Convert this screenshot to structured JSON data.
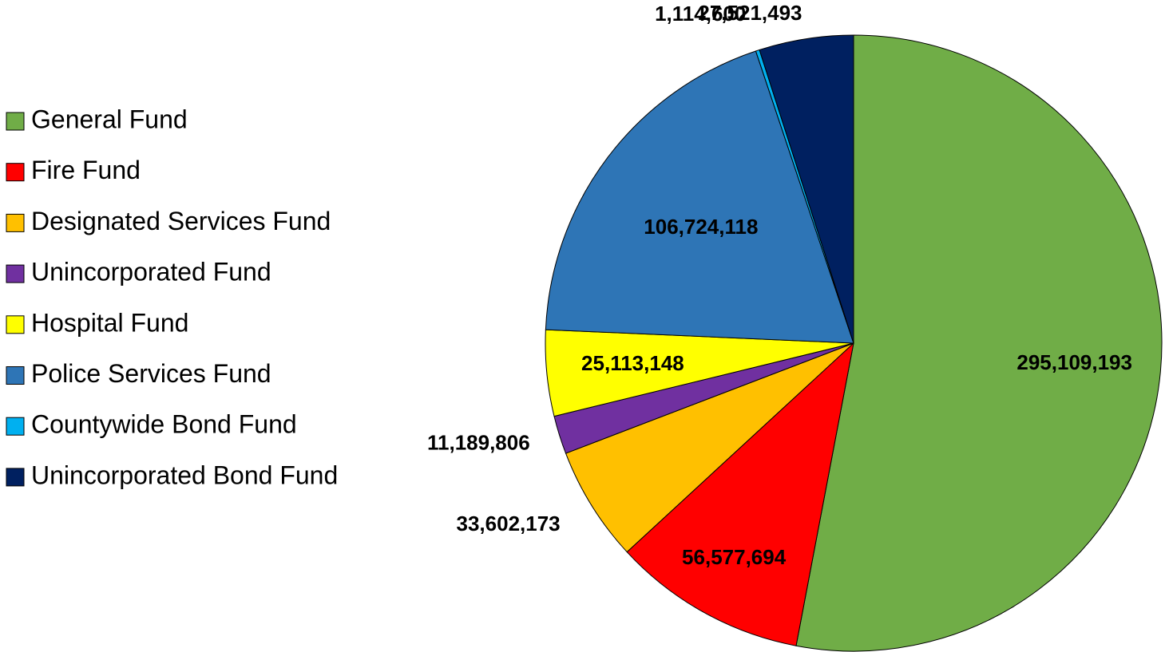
{
  "chart_data": {
    "type": "pie",
    "categories": [
      "General Fund",
      "Fire Fund",
      "Designated Services Fund",
      "Unincorporated Fund",
      "Hospital Fund",
      "Police Services Fund",
      "Countywide Bond Fund",
      "Unincorporated Bond Fund"
    ],
    "values": [
      295109193,
      56577694,
      33602173,
      11189806,
      25113148,
      106724118,
      1114600,
      27521493
    ],
    "value_labels": [
      "295,109,193",
      "56,577,694",
      "33,602,173",
      "11,189,806",
      "25,113,148",
      "106,724,118",
      "1,114,600",
      "27,521,493"
    ],
    "colors": [
      "#70ad47",
      "#ff0000",
      "#ffc000",
      "#7030a0",
      "#ffff00",
      "#2e75b6",
      "#00b0f0",
      "#002060"
    ],
    "legend": "left"
  }
}
